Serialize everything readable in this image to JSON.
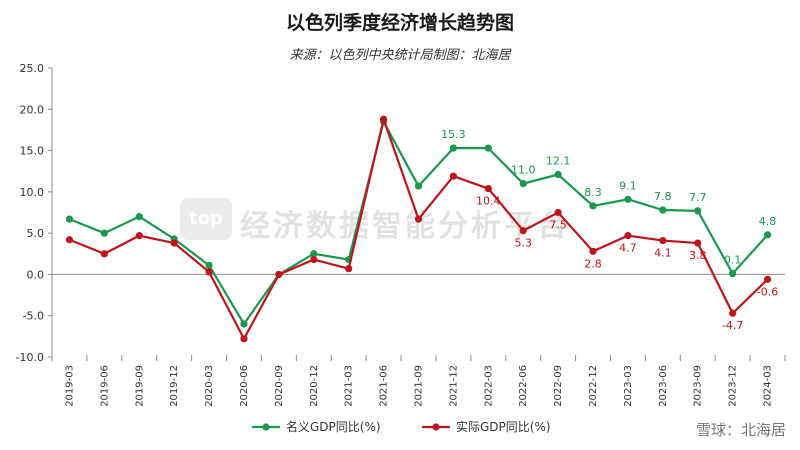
{
  "chart_data": {
    "type": "line",
    "title": "以色列季度经济增长趋势图",
    "subtitle": "来源：以色列中央统计局制图：北海居",
    "categories": [
      "2019-03",
      "2019-06",
      "2019-09",
      "2019-12",
      "2020-03",
      "2020-06",
      "2020-09",
      "2020-12",
      "2021-03",
      "2021-06",
      "2021-09",
      "2021-12",
      "2022-03",
      "2022-06",
      "2022-09",
      "2022-12",
      "2023-03",
      "2023-06",
      "2023-09",
      "2023-12",
      "2024-03"
    ],
    "ylim": [
      -10,
      25
    ],
    "yticks": [
      "25.0",
      "20.0",
      "15.0",
      "10.0",
      "5.0",
      "0.0",
      "-5.0",
      "-10.0"
    ],
    "grid": false,
    "legend": "bottom",
    "series": [
      {
        "name": "名义GDP同比(%)",
        "color": "#1a9850",
        "values": [
          6.7,
          5.0,
          7.0,
          4.3,
          1.1,
          -6.0,
          0.0,
          2.5,
          1.8,
          18.5,
          10.7,
          15.3,
          15.3,
          11.0,
          12.1,
          8.3,
          9.1,
          7.8,
          7.7,
          0.1,
          4.8
        ],
        "labels": {
          "11": "15.3",
          "13": "11.0",
          "14": "12.1",
          "15": "8.3",
          "16": "9.1",
          "17": "7.8",
          "18": "7.7",
          "19": "0.1",
          "20": "4.8"
        }
      },
      {
        "name": "实际GDP同比(%)",
        "color": "#c0141b",
        "values": [
          4.2,
          2.5,
          4.7,
          3.8,
          0.3,
          -7.8,
          0.0,
          1.8,
          0.7,
          18.8,
          6.7,
          11.9,
          10.4,
          5.3,
          7.5,
          2.8,
          4.7,
          4.1,
          3.8,
          -4.7,
          -0.6
        ],
        "labels": {
          "12": "10.4",
          "13": "5.3",
          "14": "7.5",
          "15": "2.8",
          "16": "4.7",
          "17": "4.1",
          "18": "3.8",
          "19": "-4.7",
          "20": "-0.6"
        }
      }
    ]
  },
  "watermark": {
    "logo": "top",
    "text": "经济数据智能分析平台"
  },
  "credit": "雪球：北海居"
}
